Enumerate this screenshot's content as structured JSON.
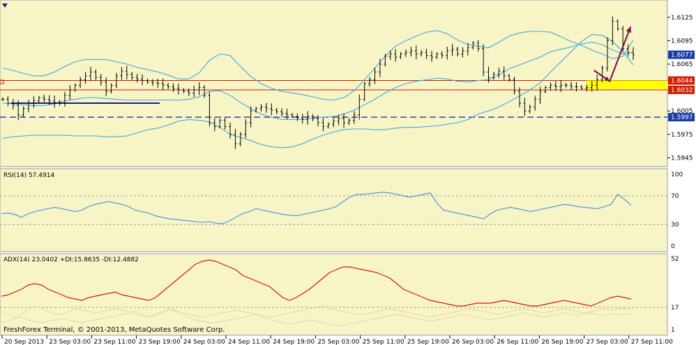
{
  "colors": {
    "background": "#f7f5c6",
    "bands": "#3fa9e0",
    "price_bars": "#000000",
    "rsi": "#3f8fe0",
    "adx": "#d11c00",
    "di": "#e3cfb8",
    "level_lines": "#d11c00",
    "support_line": "#1a1a80",
    "dashed_level": "#1a1a9c",
    "arrow": "#7a1a4a",
    "target_zone": "#ffff00",
    "current_tag": "#1a3aa8"
  },
  "terminal": {
    "copyright": "FreshForex Terminal, © 2001-2013, MetaQuotes Software Corp.",
    "menu_icon": "dropdown-triangle-icon"
  },
  "chart_data": [
    {
      "type": "ohlc",
      "title": "",
      "ylim": [
        1.594,
        1.614
      ],
      "yticks": [
        "1.6125",
        "1.6095",
        "1.6065",
        "1.6005",
        "1.5975",
        "1.5945"
      ],
      "price_tags": [
        {
          "label": "1.6077",
          "value": 1.6077,
          "style": "current"
        },
        {
          "label": "1.6044",
          "value": 1.6044,
          "style": "level"
        },
        {
          "label": "1.6032",
          "value": 1.6032,
          "style": "level"
        },
        {
          "label": "1.5997",
          "value": 1.5997,
          "style": "current"
        }
      ],
      "horizontal_levels": [
        {
          "value": 1.6044,
          "style": "solid-red"
        },
        {
          "value": 1.6032,
          "style": "solid-red"
        },
        {
          "value": 1.5997,
          "style": "dashed-blue"
        }
      ],
      "support_segment": {
        "value": 1.6015,
        "from_bar": 3,
        "to_bar": 60
      },
      "target_zone": {
        "low": 1.6033,
        "high": 1.6044,
        "from_bar": 223,
        "to_bar": 240
      },
      "arrow_path": [
        {
          "bar": 226,
          "value": 1.6057
        },
        {
          "bar": 232,
          "value": 1.6043
        },
        {
          "bar": 240,
          "value": 1.6113
        }
      ],
      "close": [
        1.602,
        1.6015,
        1.6012,
        1.6,
        1.6008,
        1.6015,
        1.6018,
        1.6022,
        1.602,
        1.6018,
        1.6016,
        1.6015,
        1.6025,
        1.6032,
        1.6038,
        1.6045,
        1.605,
        1.6055,
        1.6048,
        1.6042,
        1.603,
        1.6038,
        1.605,
        1.6056,
        1.6052,
        1.6048,
        1.6046,
        1.6044,
        1.6042,
        1.6041,
        1.604,
        1.6038,
        1.6036,
        1.6034,
        1.6032,
        1.603,
        1.6028,
        1.6032,
        1.6035,
        1.6025,
        1.599,
        1.5985,
        1.5993,
        1.5985,
        1.5975,
        1.5963,
        1.5975,
        1.599,
        1.6005,
        1.6008,
        1.601,
        1.6008,
        1.6006,
        1.6004,
        1.6002,
        1.6,
        1.5998,
        1.5996,
        1.5994,
        1.5998,
        1.5995,
        1.599,
        1.5985,
        1.5988,
        1.5992,
        1.5995,
        1.599,
        1.5993,
        1.6,
        1.602,
        1.604,
        1.6045,
        1.6055,
        1.6065,
        1.6075,
        1.6078,
        1.6074,
        1.6078,
        1.608,
        1.6082,
        1.6078,
        1.608,
        1.6076,
        1.6074,
        1.6078,
        1.6076,
        1.6082,
        1.6084,
        1.6078,
        1.6082,
        1.6086,
        1.6092,
        1.6085,
        1.6055,
        1.6048,
        1.6052,
        1.6056,
        1.605,
        1.6045,
        1.603,
        1.6015,
        1.6005,
        1.601,
        1.602,
        1.603,
        1.6035,
        1.6038,
        1.6036,
        1.6038,
        1.6038,
        1.6036,
        1.6036,
        1.6034,
        1.6035,
        1.6038,
        1.6045,
        1.606,
        1.6095,
        1.612,
        1.611,
        1.6085,
        1.608,
        1.6077
      ],
      "bb_upper": [
        1.606,
        1.6057,
        1.6053,
        1.605,
        1.605,
        1.6055,
        1.6062,
        1.6068,
        1.6071,
        1.6071,
        1.6071,
        1.6068,
        1.6065,
        1.6061,
        1.6058,
        1.6055,
        1.6051,
        1.6046,
        1.6046,
        1.6054,
        1.607,
        1.6078,
        1.6076,
        1.6062,
        1.6049,
        1.604,
        1.6034,
        1.603,
        1.6028,
        1.6026,
        1.6023,
        1.602,
        1.6019,
        1.6022,
        1.6031,
        1.6045,
        1.606,
        1.6075,
        1.6088,
        1.6095,
        1.6101,
        1.6106,
        1.6108,
        1.6104,
        1.6096,
        1.609,
        1.6088,
        1.6086,
        1.6093,
        1.6101,
        1.6105,
        1.6107,
        1.6107,
        1.6106,
        1.61,
        1.6094,
        1.6089,
        1.6083,
        1.6078,
        1.6072,
        1.6075,
        1.6096
      ],
      "bb_lower": [
        1.597,
        1.5972,
        1.5973,
        1.5974,
        1.5974,
        1.5974,
        1.5974,
        1.5973,
        1.5973,
        1.5973,
        1.5972,
        1.5972,
        1.5973,
        1.5977,
        1.5981,
        1.5983,
        1.5987,
        1.5992,
        1.5994,
        1.5993,
        1.5991,
        1.5984,
        1.5975,
        1.5971,
        1.5967,
        1.5962,
        1.5959,
        1.5958,
        1.5959,
        1.5963,
        1.5969,
        1.5974,
        1.5978,
        1.5981,
        1.5982,
        1.5982,
        1.5981,
        1.5981,
        1.5983,
        1.5984,
        1.5984,
        1.5985,
        1.5986,
        1.5988,
        1.599,
        1.5994,
        1.6001,
        1.6005,
        1.601,
        1.6017,
        1.6024,
        1.6032,
        1.6041,
        1.6055,
        1.6068,
        1.6081,
        1.6094,
        1.6103,
        1.6102,
        1.6094,
        1.6081,
        1.6064
      ],
      "bb_middle": [
        1.6015,
        1.6014,
        1.6013,
        1.6012,
        1.6012,
        1.6014,
        1.6018,
        1.602,
        1.6022,
        1.6022,
        1.6021,
        1.602,
        1.6019,
        1.6019,
        1.6019,
        1.6019,
        1.6019,
        1.6019,
        1.602,
        1.6023,
        1.603,
        1.6031,
        1.6025,
        1.6016,
        1.6008,
        1.6001,
        1.5997,
        1.5994,
        1.5994,
        1.5994,
        1.5996,
        1.5997,
        1.5998,
        1.6001,
        1.6006,
        1.6013,
        1.602,
        1.6028,
        1.6035,
        1.604,
        1.6043,
        1.6045,
        1.6047,
        1.6046,
        1.6043,
        1.6042,
        1.6044,
        1.6045,
        1.6051,
        1.6059,
        1.6064,
        1.6069,
        1.6074,
        1.6081,
        1.6084,
        1.6087,
        1.6091,
        1.6093,
        1.609,
        1.6083,
        1.6078,
        1.608
      ]
    },
    {
      "type": "line",
      "title": "RSI(14) 57.4914",
      "ylim": [
        0,
        100
      ],
      "yticks": [
        "100",
        "70",
        "30",
        "0"
      ],
      "levels": [
        70,
        30
      ],
      "series": [
        {
          "name": "RSI(14)",
          "values": [
            45,
            46,
            44,
            40,
            45,
            48,
            50,
            52,
            54,
            52,
            50,
            48,
            50,
            55,
            58,
            60,
            62,
            60,
            58,
            55,
            50,
            48,
            46,
            42,
            40,
            38,
            37,
            36,
            35,
            34,
            33,
            34,
            32,
            31,
            35,
            40,
            45,
            48,
            52,
            50,
            48,
            46,
            44,
            43,
            42,
            44,
            46,
            48,
            50,
            52,
            55,
            62,
            68,
            72,
            72,
            73,
            74,
            75,
            74,
            72,
            70,
            68,
            70,
            72,
            74,
            60,
            50,
            48,
            46,
            44,
            42,
            40,
            38,
            45,
            50,
            52,
            54,
            52,
            50,
            48,
            50,
            52,
            54,
            56,
            58,
            57,
            55,
            54,
            53,
            52,
            55,
            58,
            72,
            65,
            57
          ]
        }
      ]
    },
    {
      "type": "line",
      "title": "ADX(14) 23.0402 +DI:15.8635 -DI:12.4882",
      "ylim": [
        1,
        52
      ],
      "yticks": [
        "52",
        "17",
        "1"
      ],
      "levels": [
        17
      ],
      "series": [
        {
          "name": "ADX(14)",
          "values": [
            25,
            26,
            28,
            30,
            33,
            34,
            33,
            30,
            28,
            26,
            24,
            23,
            22,
            24,
            25,
            26,
            27,
            28,
            26,
            25,
            24,
            23,
            22,
            24,
            28,
            32,
            36,
            40,
            44,
            48,
            50,
            51,
            50,
            48,
            46,
            44,
            40,
            38,
            36,
            34,
            32,
            28,
            24,
            22,
            24,
            27,
            30,
            34,
            38,
            42,
            44,
            46,
            46,
            45,
            44,
            43,
            42,
            40,
            38,
            34,
            30,
            28,
            26,
            24,
            22,
            21,
            20,
            19,
            18,
            18,
            19,
            20,
            20,
            20,
            21,
            22,
            21,
            20,
            19,
            18,
            18,
            19,
            20,
            21,
            22,
            21,
            20,
            19,
            18,
            20,
            22,
            24,
            25,
            24,
            23
          ]
        },
        {
          "name": "+DI",
          "values": [
            14,
            12,
            10,
            12,
            16,
            18,
            16,
            14,
            12,
            12,
            14,
            16,
            15,
            14,
            13,
            14,
            15,
            16,
            15,
            14,
            12,
            11,
            10,
            12,
            14,
            16,
            15,
            13,
            12,
            11,
            10,
            11,
            12,
            13,
            14,
            15,
            14,
            13,
            12,
            11,
            10,
            11,
            12,
            13,
            14,
            15,
            16,
            17,
            18,
            16,
            15,
            14,
            13,
            12,
            12,
            13,
            14,
            15,
            16,
            15,
            14,
            13,
            12,
            11,
            10,
            11,
            12,
            13,
            14,
            15,
            16,
            15,
            14,
            13,
            12,
            13,
            14,
            15,
            16,
            15,
            14,
            13,
            14,
            15,
            16,
            15,
            14,
            13,
            14,
            15,
            16,
            15,
            16,
            16,
            16
          ]
        },
        {
          "name": "-DI",
          "values": [
            6,
            7,
            9,
            10,
            8,
            7,
            6,
            7,
            8,
            9,
            8,
            7,
            6,
            7,
            8,
            9,
            10,
            11,
            12,
            13,
            14,
            12,
            10,
            11,
            13,
            15,
            14,
            12,
            10,
            8,
            7,
            6,
            6,
            7,
            8,
            9,
            10,
            11,
            12,
            10,
            8,
            7,
            6,
            5,
            6,
            7,
            8,
            7,
            6,
            5,
            4,
            4,
            5,
            6,
            7,
            8,
            9,
            10,
            11,
            12,
            11,
            10,
            9,
            8,
            7,
            8,
            9,
            10,
            11,
            12,
            11,
            10,
            9,
            8,
            9,
            10,
            11,
            12,
            13,
            12,
            11,
            10,
            11,
            12,
            13,
            12,
            11,
            12,
            13,
            12,
            11,
            12,
            12,
            12,
            12
          ]
        }
      ]
    }
  ],
  "x_axis": {
    "labels": [
      "20 Sep 2013",
      "23 Sep 03:00",
      "23 Sep 11:00",
      "23 Sep 19:00",
      "24 Sep 03:00",
      "24 Sep 11:00",
      "24 Sep 19:00",
      "25 Sep 03:00",
      "25 Sep 11:00",
      "25 Sep 19:00",
      "26 Sep 03:00",
      "26 Sep 11:00",
      "26 Sep 19:00",
      "27 Sep 03:00",
      "27 Sep 11:00"
    ]
  }
}
